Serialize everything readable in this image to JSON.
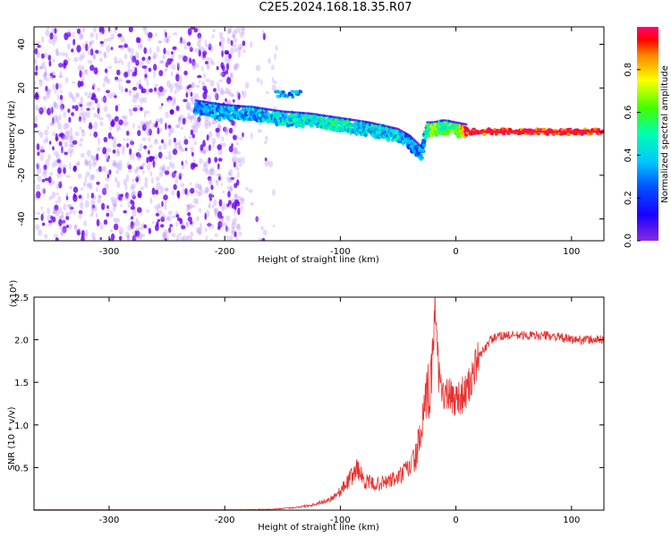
{
  "title": "C2E5.2024.168.18.35.R07",
  "colors": {
    "snr_line": "#e8302f",
    "scatter_purple": "#7f00ff",
    "colormap": [
      "#8a2be2",
      "#1a00ff",
      "#00a0ff",
      "#00ffc0",
      "#40ff00",
      "#ffff00",
      "#ff8000",
      "#ff0000",
      "#ff0078"
    ]
  },
  "chart_data": [
    {
      "type": "heatmap",
      "xlabel": "Height of straight line (km)",
      "ylabel": "Frequency (Hz)",
      "xlim": [
        -365,
        128
      ],
      "ylim": [
        -50,
        48
      ],
      "xticks": [
        -300,
        -200,
        -100,
        0,
        100
      ],
      "xticklabels": [
        "-300",
        "-200",
        "-100",
        "0",
        "100"
      ],
      "yticks": [
        -40,
        -20,
        0,
        20,
        40
      ],
      "yticklabels": [
        "-40",
        "-20",
        "0",
        "20",
        "40"
      ],
      "colorbar": {
        "label": "Normalized spectral amplitude",
        "range": [
          0,
          1
        ],
        "ticks": [
          0.0,
          0.2,
          0.4,
          0.6,
          0.8
        ],
        "ticklabels": [
          "0.0",
          "0.2",
          "0.4",
          "0.6",
          "0.8"
        ]
      },
      "noise_region": {
        "x": [
          -365,
          -175
        ],
        "y": [
          -50,
          48
        ],
        "amplitude": 0.1
      },
      "ridge": {
        "x": [
          -225,
          -200,
          -175,
          -150,
          -125,
          -100,
          -75,
          -50,
          -40,
          -30,
          -25,
          -20,
          -10,
          0,
          10,
          50,
          100,
          128
        ],
        "y": [
          11,
          9,
          8,
          6,
          5,
          3,
          1,
          -2,
          -5,
          -10,
          1,
          1,
          2,
          1,
          0,
          0,
          0,
          0
        ],
        "amplitude": [
          0.25,
          0.35,
          0.35,
          0.4,
          0.45,
          0.45,
          0.4,
          0.4,
          0.3,
          0.3,
          0.5,
          0.6,
          0.55,
          0.6,
          0.95,
          0.95,
          0.95,
          0.95
        ]
      },
      "blobs": [
        {
          "x": -150,
          "y": 17,
          "amplitude": 0.35
        },
        {
          "x": -140,
          "y": 17,
          "amplitude": 0.3
        },
        {
          "x": -205,
          "y": 7,
          "amplitude": 0.35
        }
      ]
    },
    {
      "type": "line",
      "xlabel": "Height of straight line (km)",
      "ylabel": "SNR (10 * v/v)",
      "multiplier_label": "(x10⁴)",
      "xlim": [
        -365,
        128
      ],
      "ylim": [
        0,
        2.5
      ],
      "xticks": [
        -300,
        -200,
        -100,
        0,
        100
      ],
      "xticklabels": [
        "-300",
        "-200",
        "-100",
        "0",
        "100"
      ],
      "yticks": [
        0.5,
        1.0,
        1.5,
        2.0,
        2.5
      ],
      "yticklabels": [
        "0.5",
        "1.0",
        "1.5",
        "2.0",
        "2.5"
      ],
      "series": [
        {
          "x": [
            -365,
            -300,
            -200,
            -160,
            -140,
            -125,
            -110,
            -100,
            -90,
            -85,
            -80,
            -70,
            -60,
            -50,
            -40,
            -35,
            -30,
            -25,
            -20,
            -18,
            -15,
            -10,
            0,
            10,
            20,
            30,
            40,
            60,
            80,
            100,
            120,
            128
          ],
          "values": [
            0.0,
            0.0,
            0.0,
            0.01,
            0.03,
            0.06,
            0.12,
            0.22,
            0.4,
            0.5,
            0.35,
            0.3,
            0.33,
            0.38,
            0.5,
            0.62,
            0.9,
            1.3,
            1.7,
            2.5,
            1.6,
            1.35,
            1.3,
            1.4,
            1.8,
            2.0,
            2.05,
            2.05,
            2.05,
            2.0,
            2.0,
            2.0
          ]
        }
      ]
    }
  ]
}
